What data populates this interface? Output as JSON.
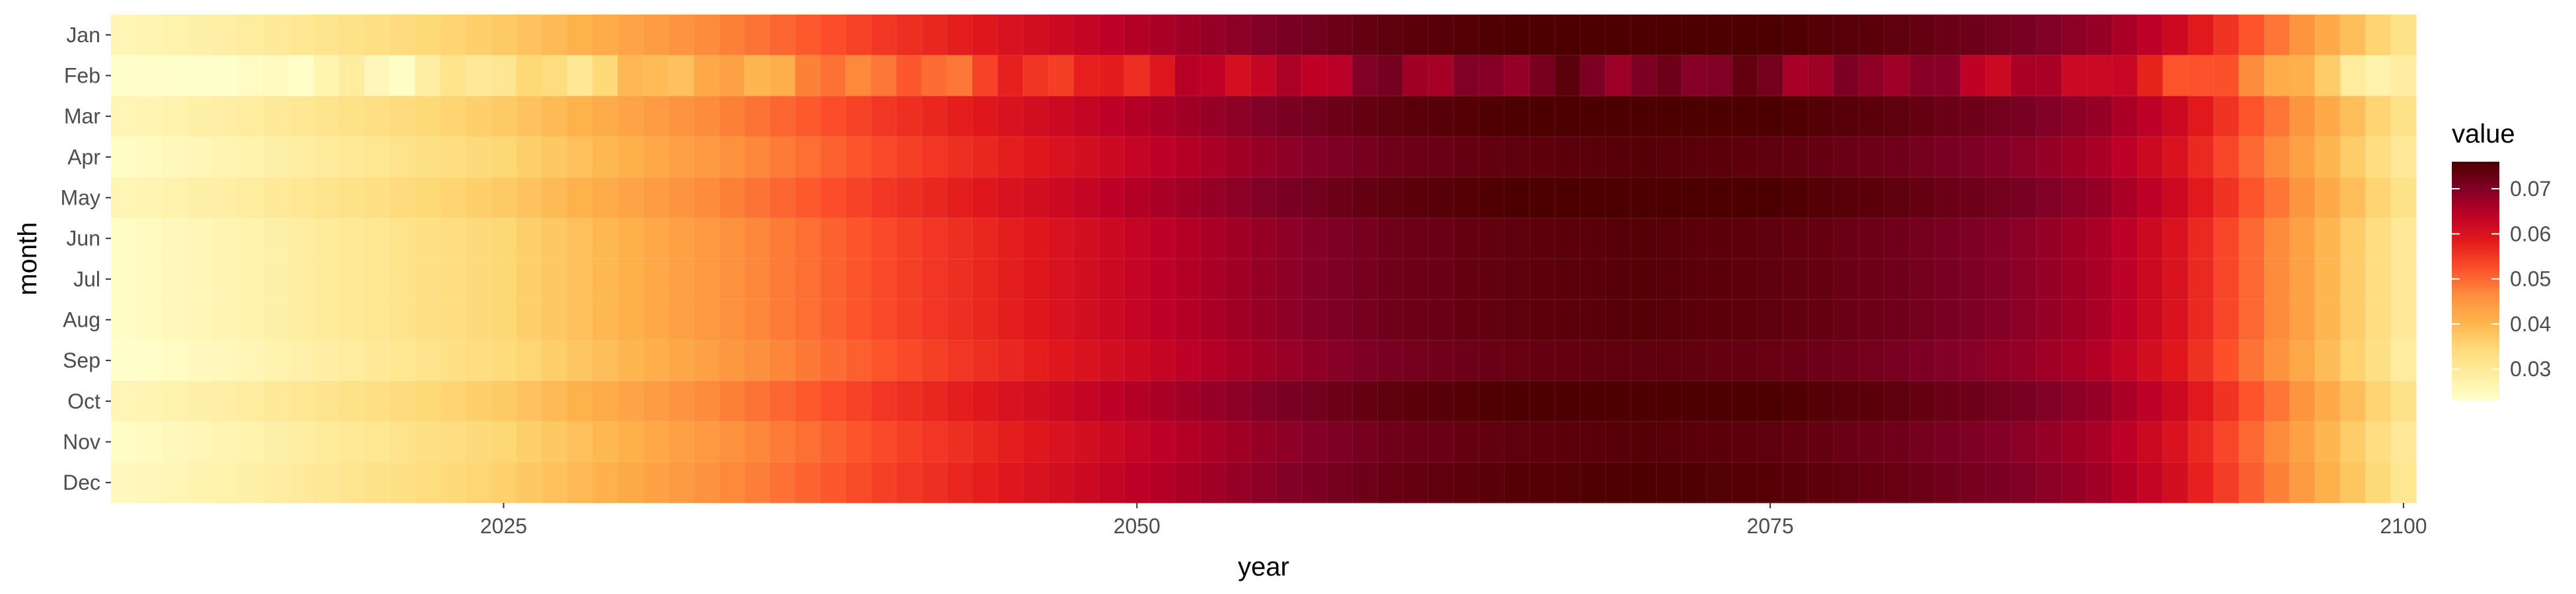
{
  "chart_data": {
    "type": "heatmap",
    "xlabel": "year",
    "ylabel": "month",
    "x_range": [
      2010,
      2100
    ],
    "x_ticks": [
      2025,
      2050,
      2075,
      2100
    ],
    "x_tick_labels": [
      "2025",
      "2050",
      "2075",
      "2100"
    ],
    "y_categories": [
      "Jan",
      "Feb",
      "Mar",
      "Apr",
      "May",
      "Jun",
      "Jul",
      "Aug",
      "Sep",
      "Oct",
      "Nov",
      "Dec"
    ],
    "legend": {
      "title": "value",
      "placement": "right",
      "ticks": [
        0.03,
        0.04,
        0.05,
        0.06,
        0.07
      ],
      "tick_labels": [
        "0.03",
        "0.04",
        "0.05",
        "0.06",
        "0.07"
      ],
      "range": [
        0.023,
        0.076
      ]
    },
    "colorscale": [
      "#ffffcc",
      "#ffeda0",
      "#fed976",
      "#feb24c",
      "#fd8d3c",
      "#fc4e2a",
      "#e31a1c",
      "#bd0026",
      "#800026",
      "#4d0000"
    ],
    "grid": true,
    "year_anchors": {
      "years": [
        2010,
        2015,
        2020,
        2025,
        2030,
        2035,
        2040,
        2045,
        2050,
        2055,
        2060,
        2065,
        2070,
        2075,
        2080,
        2085,
        2088,
        2091,
        2094,
        2097,
        2100
      ],
      "values": [
        0.024,
        0.027,
        0.031,
        0.035,
        0.041,
        0.047,
        0.053,
        0.058,
        0.063,
        0.068,
        0.072,
        0.074,
        0.075,
        0.074,
        0.072,
        0.069,
        0.066,
        0.06,
        0.05,
        0.04,
        0.03
      ]
    },
    "month_offsets": {
      "Jan": 0.002,
      "Feb": -0.004,
      "Mar": 0.002,
      "Apr": 0.0,
      "May": 0.002,
      "Jun": 0.0,
      "Jul": 0.0,
      "Aug": 0.0,
      "Sep": -0.001,
      "Oct": 0.002,
      "Nov": 0.0,
      "Dec": 0.001
    }
  }
}
